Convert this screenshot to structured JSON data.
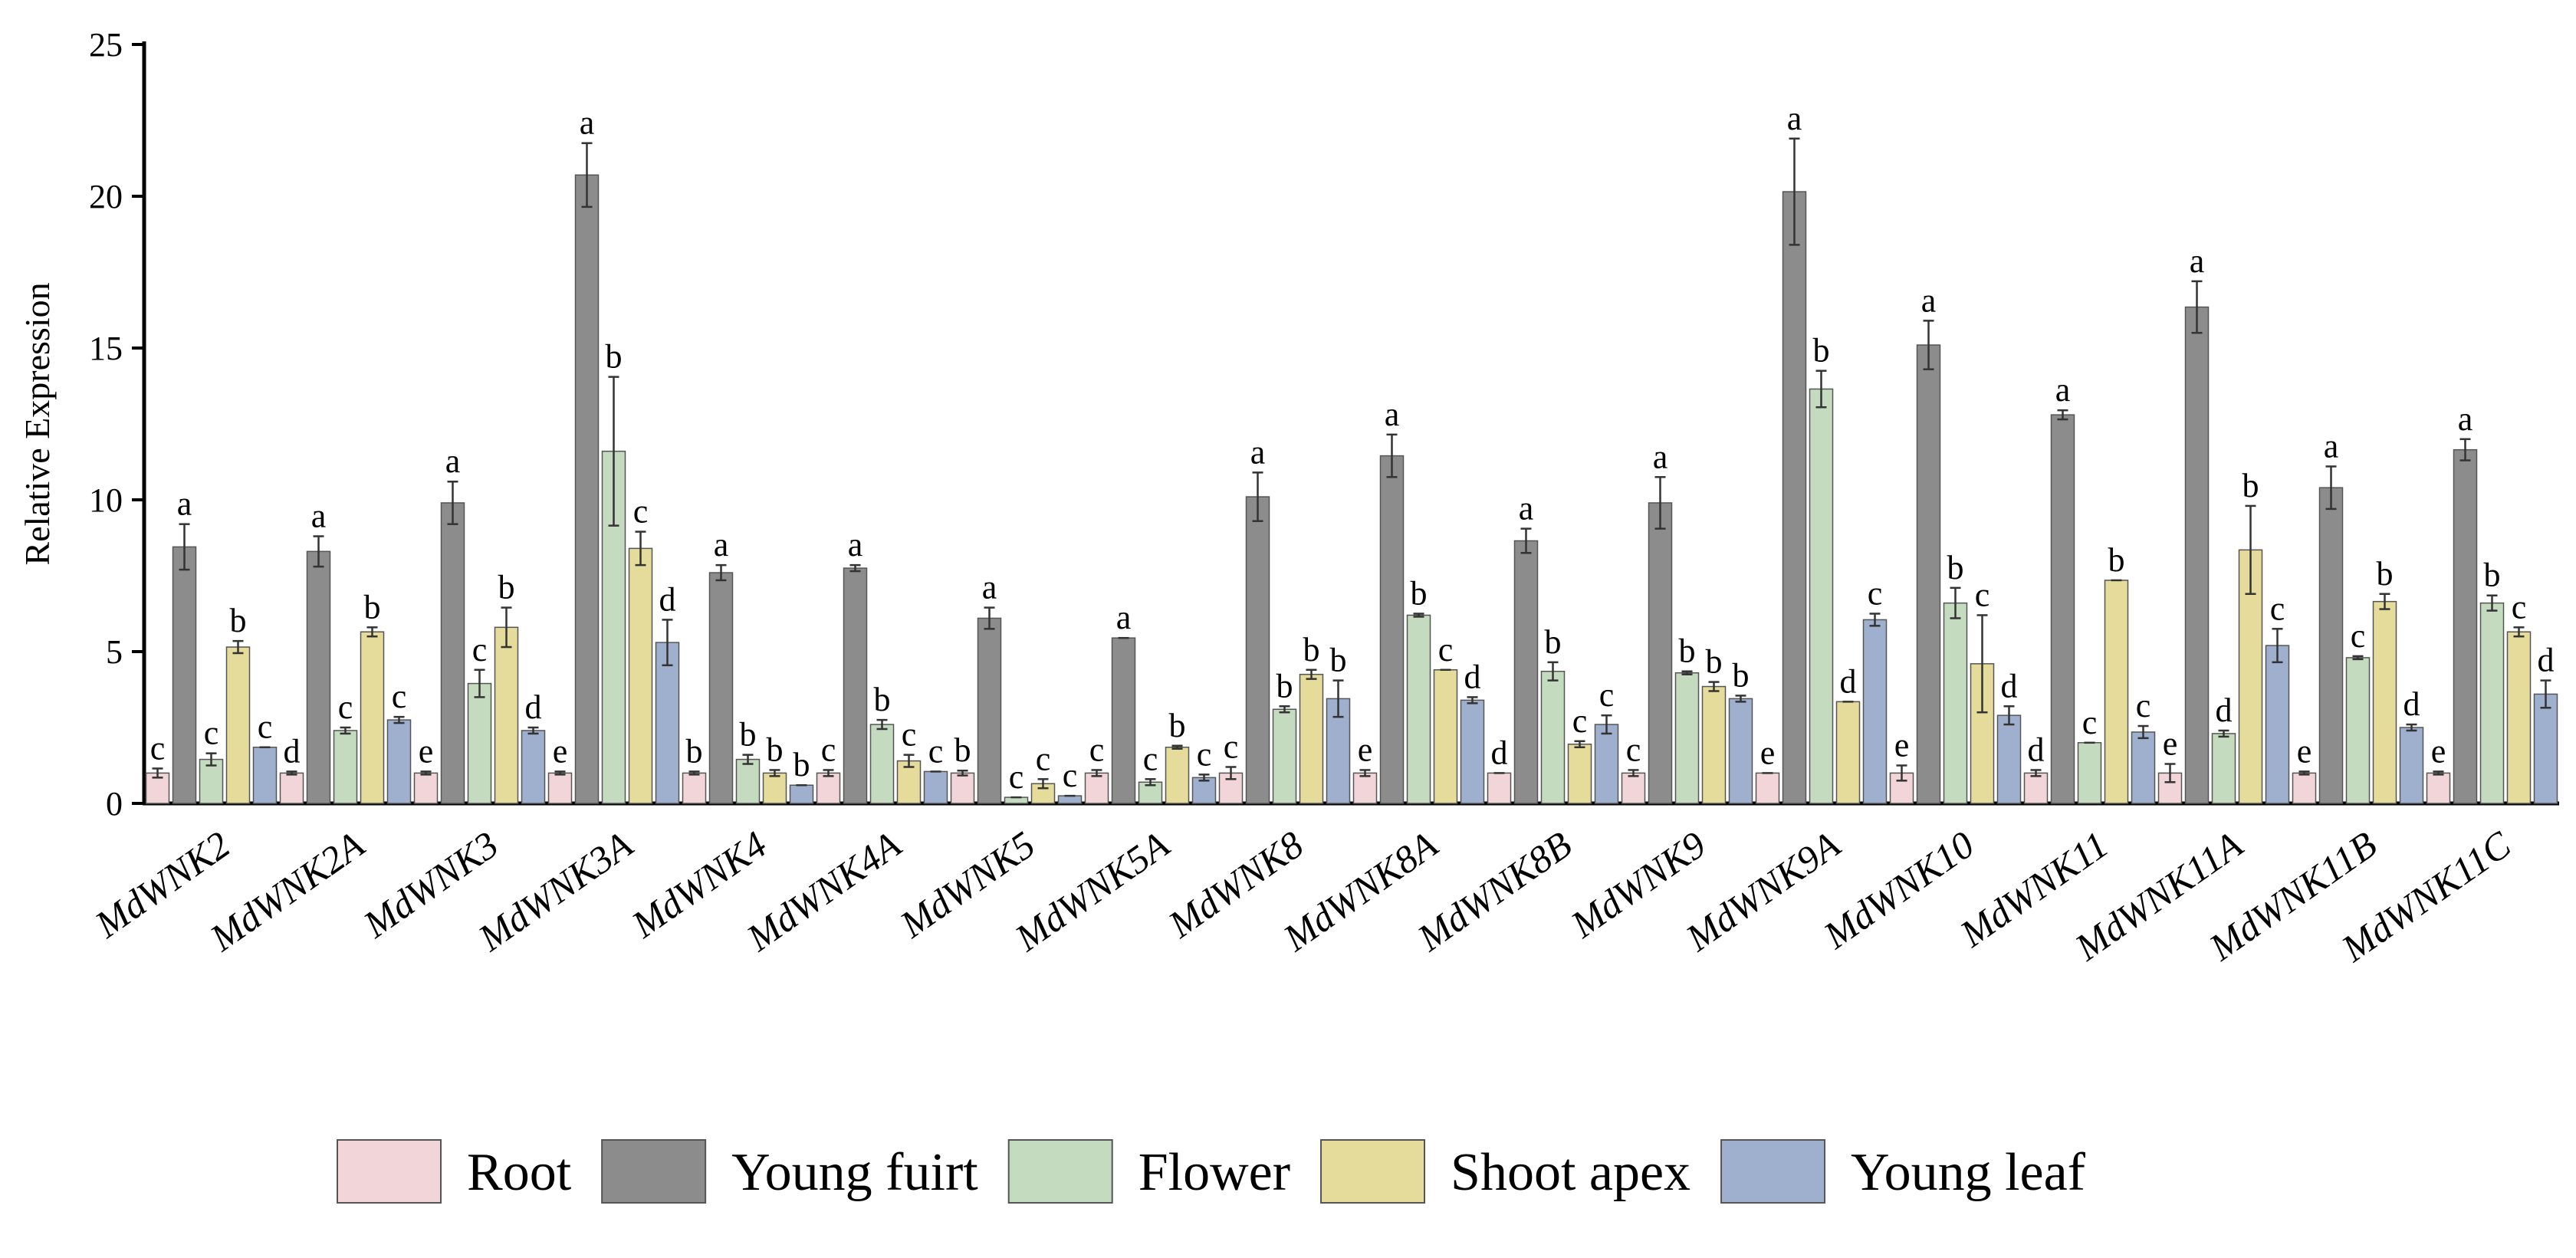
{
  "chart_data": {
    "type": "bar",
    "ylabel": "Relative Expression",
    "xlabel": "",
    "ylim": [
      0,
      25
    ],
    "yticks": [
      "0",
      "5",
      "10",
      "15",
      "20",
      "25"
    ],
    "grid": false,
    "legend_position": "bottom",
    "categories": [
      "MdWNK2",
      "MdWNK2A",
      "MdWNK3",
      "MdWNK3A",
      "MdWNK4",
      "MdWNK4A",
      "MdWNK5",
      "MdWNK5A",
      "MdWNK8",
      "MdWNK8A",
      "MdWNK8B",
      "MdWNK9",
      "MdWNK9A",
      "MdWNK10",
      "MdWNK11",
      "MdWNK11A",
      "MdWNK11B",
      "MdWNK11C"
    ],
    "series": [
      {
        "name": "Root",
        "color": "#f2d5d8",
        "values": [
          1.0,
          1.0,
          1.0,
          1.0,
          1.0,
          1.0,
          1.0,
          1.0,
          1.0,
          1.0,
          1.0,
          1.0,
          1.0,
          1.0,
          1.0,
          1.0,
          1.0,
          1.0
        ],
        "errors": [
          0.15,
          0.05,
          0.05,
          0.05,
          0.05,
          0.1,
          0.08,
          0.1,
          0.2,
          0.1,
          0.0,
          0.1,
          0.0,
          0.25,
          0.1,
          0.3,
          0.05,
          0.05
        ],
        "labels": [
          "c",
          "d",
          "e",
          "e",
          "b",
          "c",
          "b",
          "c",
          "c",
          "e",
          "d",
          "c",
          "e",
          "e",
          "d",
          "e",
          "e",
          "e"
        ]
      },
      {
        "name": "Young fuirt",
        "color": "#8c8c8c",
        "values": [
          8.45,
          8.3,
          9.9,
          20.7,
          7.6,
          7.75,
          6.1,
          5.45,
          10.1,
          11.45,
          8.65,
          9.9,
          20.15,
          15.1,
          12.8,
          16.35,
          10.4,
          11.65
        ],
        "errors": [
          0.75,
          0.5,
          0.7,
          1.05,
          0.25,
          0.1,
          0.35,
          0.0,
          0.8,
          0.7,
          0.4,
          0.85,
          1.75,
          0.8,
          0.15,
          0.85,
          0.7,
          0.35
        ],
        "labels": [
          "a",
          "a",
          "a",
          "a",
          "a",
          "a",
          "a",
          "a",
          "a",
          "a",
          "a",
          "a",
          "a",
          "a",
          "a",
          "a",
          "a",
          "a"
        ]
      },
      {
        "name": "Flower",
        "color": "#c5dbbf",
        "values": [
          1.45,
          2.4,
          3.95,
          11.6,
          1.45,
          2.6,
          0.2,
          0.7,
          3.1,
          6.2,
          4.35,
          4.3,
          13.65,
          6.6,
          2.0,
          2.3,
          4.8,
          6.6
        ],
        "errors": [
          0.2,
          0.1,
          0.45,
          2.45,
          0.15,
          0.15,
          0.0,
          0.1,
          0.1,
          0.05,
          0.3,
          0.05,
          0.6,
          0.5,
          0.0,
          0.1,
          0.05,
          0.25
        ],
        "labels": [
          "c",
          "c",
          "c",
          "b",
          "b",
          "b",
          "c",
          "c",
          "b",
          "b",
          "b",
          "b",
          "b",
          "b",
          "c",
          "d",
          "c",
          "b"
        ]
      },
      {
        "name": "Shoot apex",
        "color": "#e5dc9c",
        "values": [
          5.15,
          5.65,
          5.8,
          8.4,
          1.0,
          1.4,
          0.65,
          1.85,
          4.25,
          4.4,
          1.95,
          3.85,
          3.35,
          4.6,
          7.35,
          8.35,
          6.65,
          5.65
        ],
        "errors": [
          0.2,
          0.15,
          0.65,
          0.55,
          0.1,
          0.2,
          0.15,
          0.05,
          0.15,
          0.0,
          0.1,
          0.15,
          0.0,
          1.6,
          0.0,
          1.45,
          0.25,
          0.15
        ],
        "labels": [
          "b",
          "b",
          "b",
          "c",
          "b",
          "c",
          "c",
          "b",
          "b",
          "c",
          "c",
          "b",
          "d",
          "c",
          "b",
          "b",
          "b",
          "c"
        ]
      },
      {
        "name": "Young leaf",
        "color": "#9fb0cf",
        "values": [
          1.85,
          2.75,
          2.4,
          5.3,
          0.6,
          1.05,
          0.25,
          0.85,
          3.45,
          3.4,
          2.6,
          3.45,
          6.05,
          2.9,
          2.35,
          5.2,
          2.5,
          3.6
        ],
        "errors": [
          0.0,
          0.1,
          0.1,
          0.75,
          0.0,
          0.0,
          0.0,
          0.1,
          0.6,
          0.1,
          0.3,
          0.1,
          0.2,
          0.3,
          0.2,
          0.55,
          0.1,
          0.45
        ],
        "labels": [
          "c",
          "c",
          "d",
          "d",
          "b",
          "c",
          "c",
          "c",
          "b",
          "d",
          "c",
          "b",
          "c",
          "d",
          "c",
          "c",
          "d",
          "d"
        ]
      }
    ]
  }
}
